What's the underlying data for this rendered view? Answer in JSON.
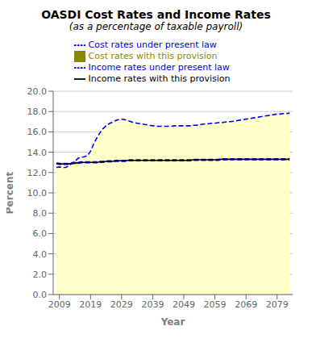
{
  "chart_data": {
    "type": "line",
    "title": "OASDI Cost Rates and Income Rates",
    "subtitle": "(as a percentage of taxable payroll)",
    "xlabel": "Year",
    "ylabel": "Percent",
    "xlim": [
      2007,
      2084
    ],
    "ylim": [
      0.0,
      20.0
    ],
    "xticks": [
      2009,
      2019,
      2029,
      2039,
      2049,
      2059,
      2069,
      2079
    ],
    "yticks": [
      {
        "value": 0.0,
        "label": "0.0"
      },
      {
        "value": 2.0,
        "label": "2.0"
      },
      {
        "value": 4.0,
        "label": "4.0"
      },
      {
        "value": 6.0,
        "label": "6.0"
      },
      {
        "value": 8.0,
        "label": "8.0"
      },
      {
        "value": 10.0,
        "label": "10.0"
      },
      {
        "value": 12.0,
        "label": "12.0"
      },
      {
        "value": 14.0,
        "label": "14.0"
      },
      {
        "value": 16.0,
        "label": "16.0"
      },
      {
        "value": 18.0,
        "label": "18.0"
      },
      {
        "value": 20.0,
        "label": "20.0"
      }
    ],
    "grid": true,
    "legend": "top",
    "x": [
      2008,
      2009,
      2010,
      2011,
      2012,
      2013,
      2014,
      2015,
      2016,
      2017,
      2018,
      2019,
      2020,
      2021,
      2022,
      2023,
      2024,
      2025,
      2026,
      2027,
      2028,
      2029,
      2030,
      2031,
      2032,
      2033,
      2034,
      2035,
      2036,
      2037,
      2038,
      2039,
      2040,
      2041,
      2042,
      2043,
      2044,
      2045,
      2046,
      2047,
      2048,
      2049,
      2050,
      2051,
      2052,
      2053,
      2054,
      2055,
      2056,
      2057,
      2058,
      2059,
      2060,
      2061,
      2062,
      2063,
      2064,
      2065,
      2066,
      2067,
      2068,
      2069,
      2070,
      2071,
      2072,
      2073,
      2074,
      2075,
      2076,
      2077,
      2078,
      2079,
      2080,
      2081,
      2082,
      2083
    ],
    "series": [
      {
        "name": "Cost rates with this provision",
        "type": "area",
        "color": "#FFFFC8",
        "values": [
          12.5,
          12.55,
          12.5,
          12.5,
          12.65,
          12.9,
          13.1,
          13.4,
          13.5,
          13.55,
          13.65,
          14.1,
          14.8,
          15.4,
          15.9,
          16.3,
          16.6,
          16.8,
          16.95,
          17.1,
          17.2,
          17.25,
          17.2,
          17.1,
          17.0,
          16.9,
          16.85,
          16.8,
          16.75,
          16.7,
          16.65,
          16.6,
          16.55,
          16.55,
          16.55,
          16.55,
          16.55,
          16.55,
          16.6,
          16.6,
          16.6,
          16.6,
          16.6,
          16.6,
          16.65,
          16.65,
          16.7,
          16.75,
          16.8,
          16.8,
          16.85,
          16.85,
          16.9,
          16.9,
          16.95,
          17.0,
          17.0,
          17.05,
          17.1,
          17.15,
          17.2,
          17.25,
          17.3,
          17.35,
          17.4,
          17.45,
          17.5,
          17.55,
          17.6,
          17.65,
          17.7,
          17.75,
          17.75,
          17.8,
          17.8,
          17.85
        ]
      },
      {
        "name": "Income rates under present law",
        "type": "line",
        "color": "#0000EE",
        "line_style": "dashed",
        "values": [
          12.9,
          12.85,
          12.85,
          12.85,
          12.85,
          12.9,
          12.95,
          12.95,
          13.0,
          13.0,
          13.0,
          13.0,
          13.0,
          13.0,
          13.05,
          13.05,
          13.1,
          13.1,
          13.1,
          13.15,
          13.15,
          13.15,
          13.15,
          13.2,
          13.2,
          13.2,
          13.2,
          13.2,
          13.2,
          13.2,
          13.2,
          13.2,
          13.2,
          13.2,
          13.2,
          13.2,
          13.2,
          13.2,
          13.2,
          13.2,
          13.2,
          13.2,
          13.2,
          13.2,
          13.25,
          13.25,
          13.25,
          13.25,
          13.25,
          13.25,
          13.25,
          13.25,
          13.25,
          13.3,
          13.3,
          13.3,
          13.3,
          13.3,
          13.3,
          13.3,
          13.3,
          13.3,
          13.3,
          13.3,
          13.3,
          13.3,
          13.3,
          13.3,
          13.3,
          13.3,
          13.3,
          13.3,
          13.3,
          13.3,
          13.3,
          13.3
        ]
      },
      {
        "name": "Income rates with this provision",
        "type": "line",
        "color": "#000000",
        "line_style": "solid",
        "values": [
          12.9,
          12.85,
          12.85,
          12.85,
          12.85,
          12.9,
          12.95,
          12.95,
          13.0,
          13.0,
          13.0,
          13.0,
          13.0,
          13.0,
          13.05,
          13.05,
          13.1,
          13.1,
          13.1,
          13.15,
          13.15,
          13.15,
          13.15,
          13.2,
          13.2,
          13.2,
          13.2,
          13.2,
          13.2,
          13.2,
          13.2,
          13.2,
          13.2,
          13.2,
          13.2,
          13.2,
          13.2,
          13.2,
          13.2,
          13.2,
          13.2,
          13.2,
          13.2,
          13.2,
          13.25,
          13.25,
          13.25,
          13.25,
          13.25,
          13.25,
          13.25,
          13.25,
          13.25,
          13.3,
          13.3,
          13.3,
          13.3,
          13.3,
          13.3,
          13.3,
          13.3,
          13.3,
          13.3,
          13.3,
          13.3,
          13.3,
          13.3,
          13.3,
          13.3,
          13.3,
          13.3,
          13.3,
          13.3,
          13.3,
          13.3,
          13.3
        ]
      },
      {
        "name": "Cost rates under present law",
        "type": "line",
        "color": "#0000EE",
        "line_style": "dashed",
        "values": [
          12.5,
          12.55,
          12.5,
          12.5,
          12.65,
          12.9,
          13.1,
          13.4,
          13.5,
          13.55,
          13.65,
          14.1,
          14.8,
          15.4,
          15.9,
          16.3,
          16.6,
          16.8,
          16.95,
          17.1,
          17.2,
          17.25,
          17.2,
          17.1,
          17.0,
          16.9,
          16.85,
          16.8,
          16.75,
          16.7,
          16.65,
          16.6,
          16.55,
          16.55,
          16.55,
          16.55,
          16.55,
          16.55,
          16.6,
          16.6,
          16.6,
          16.6,
          16.6,
          16.6,
          16.65,
          16.65,
          16.7,
          16.75,
          16.8,
          16.8,
          16.85,
          16.85,
          16.9,
          16.9,
          16.95,
          17.0,
          17.0,
          17.05,
          17.1,
          17.15,
          17.2,
          17.25,
          17.3,
          17.35,
          17.4,
          17.45,
          17.5,
          17.55,
          17.6,
          17.65,
          17.7,
          17.75,
          17.75,
          17.8,
          17.8,
          17.85
        ]
      }
    ]
  }
}
